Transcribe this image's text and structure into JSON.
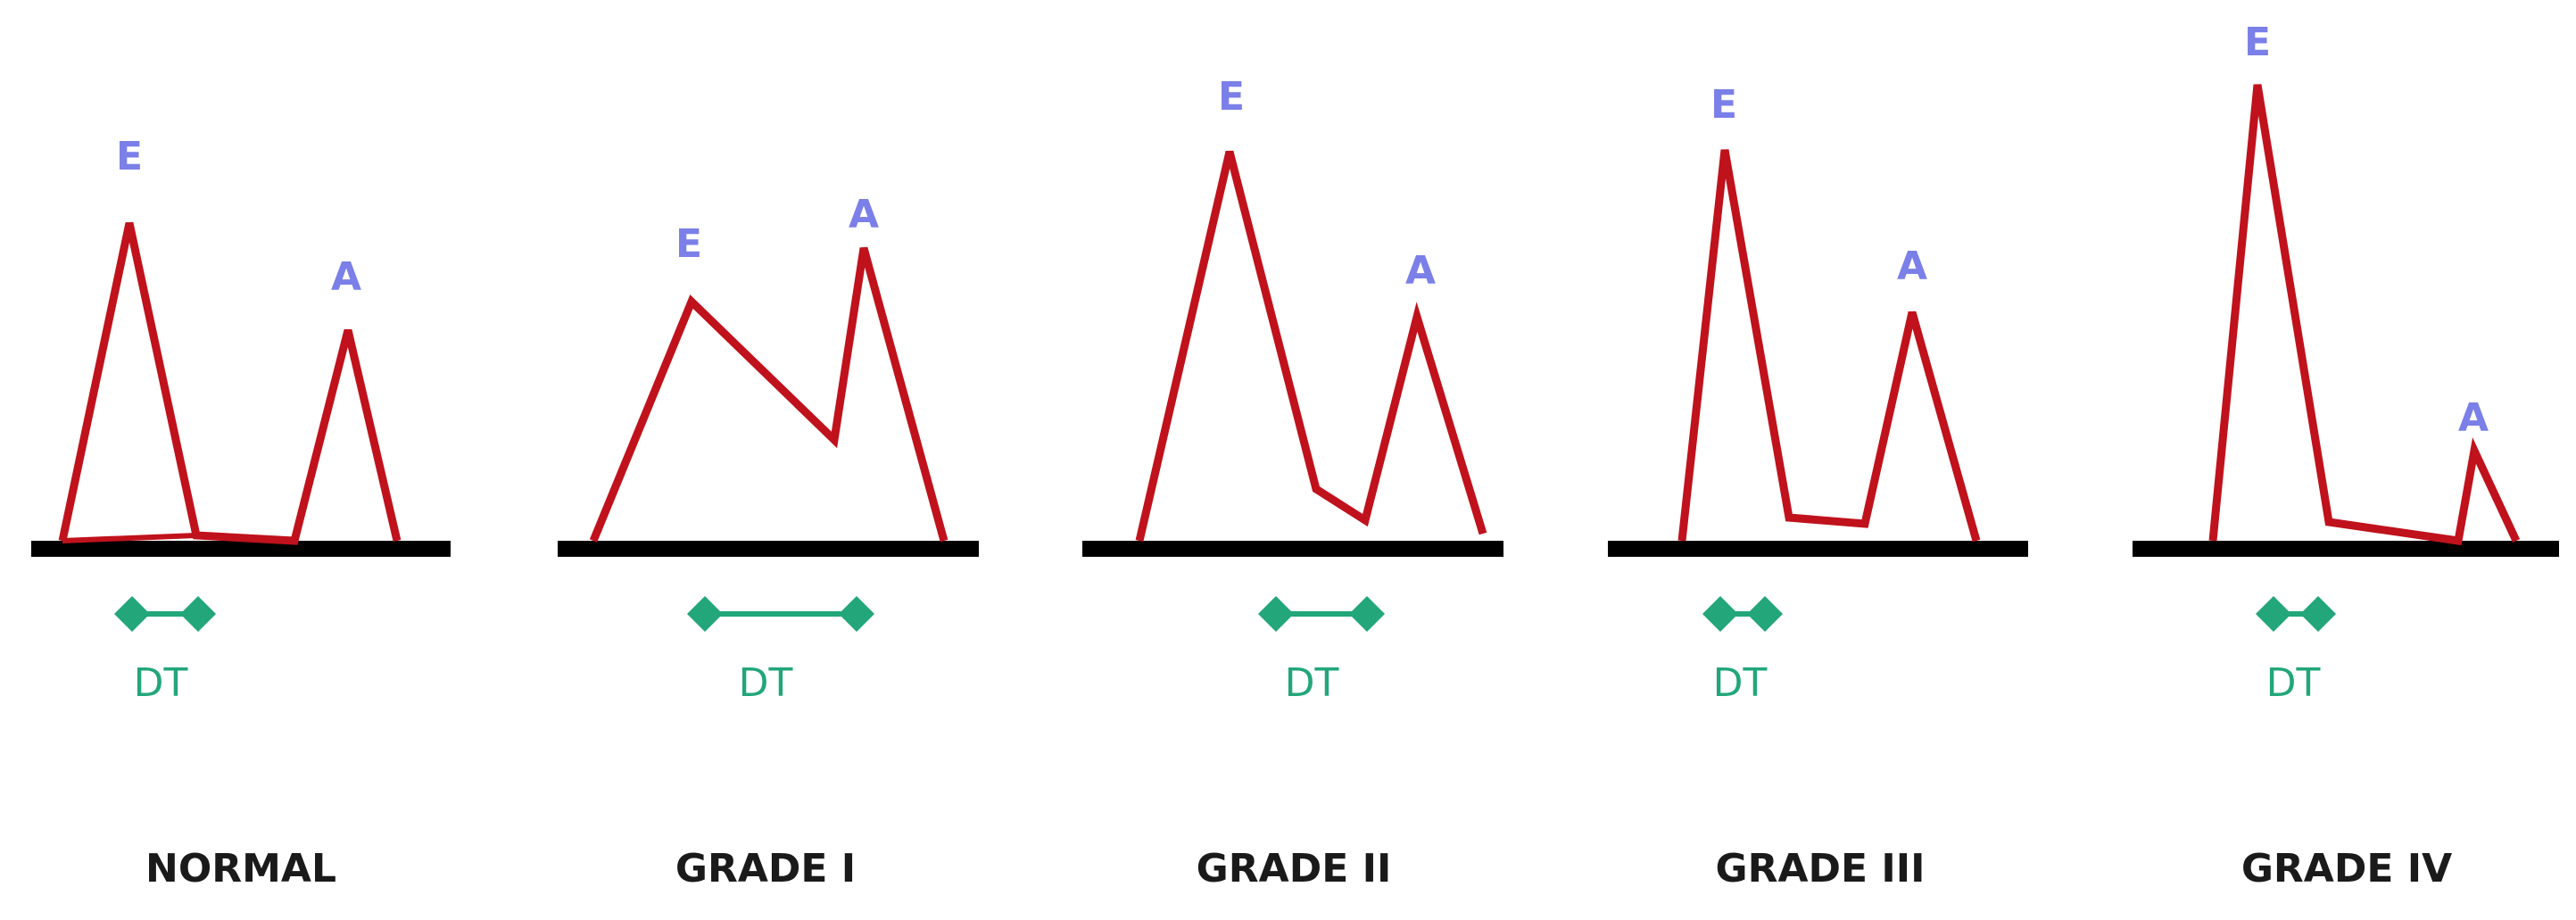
{
  "colors": {
    "waveform": "#c0121c",
    "peak_label": "#7b7fe8",
    "dt": "#22a67a",
    "baseline": "#000000",
    "title": "#1a1a1a"
  },
  "panels": [
    {
      "title": "NORMAL",
      "e_label": "E",
      "a_label": "A",
      "dt_label": "DT",
      "dt_interval": "short"
    },
    {
      "title": "GRADE I",
      "e_label": "E",
      "a_label": "A",
      "dt_label": "DT",
      "dt_interval": "long"
    },
    {
      "title": "GRADE II",
      "e_label": "E",
      "a_label": "A",
      "dt_label": "DT",
      "dt_interval": "short"
    },
    {
      "title": "GRADE III",
      "e_label": "E",
      "a_label": "A",
      "dt_label": "DT",
      "dt_interval": "very short"
    },
    {
      "title": "GRADE IV",
      "e_label": "E",
      "a_label": "A",
      "dt_label": "DT",
      "dt_interval": "very short"
    }
  ]
}
